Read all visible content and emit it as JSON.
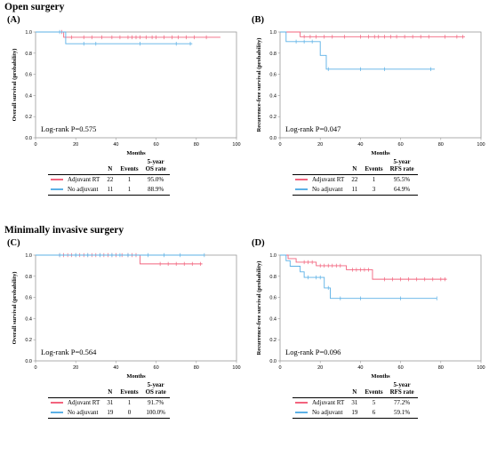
{
  "sections": [
    {
      "title": "Open surgery"
    },
    {
      "title": "Minimally invasive surgery"
    }
  ],
  "colors": {
    "adjuvant": "#f2647e",
    "no_adjuvant": "#5bb0e6",
    "frame": "#9a9a9a"
  },
  "table_headers": {
    "n": "N",
    "events": "Events",
    "rate_os_1": "5-year",
    "rate_os_2": "OS rate",
    "rate_rfs_1": "5-year",
    "rate_rfs_2": "RFS rate"
  },
  "chart_data": [
    {
      "type": "line",
      "label": "(A)",
      "xlabel": "Months",
      "ylabel": "Overall survival (probability)",
      "xlim": [
        0,
        100
      ],
      "ylim": [
        0,
        1
      ],
      "xticks": [
        "0",
        "20",
        "40",
        "60",
        "80",
        "100"
      ],
      "yticks": [
        "0.0",
        "0.2",
        "0.4",
        "0.6",
        "0.8",
        "1.0"
      ],
      "logrank": "Log-rank P=0.575",
      "series": [
        {
          "name": "Adjuvant RT",
          "n": "22",
          "events": "1",
          "rate": "95.0%",
          "x": [
            0,
            14,
            14,
            92
          ],
          "y": [
            1,
            1,
            0.95,
            0.95
          ],
          "censor_x": [
            13,
            18,
            24,
            28,
            33,
            38,
            42,
            46,
            48,
            50,
            52,
            55,
            58,
            60,
            64,
            68,
            71,
            75,
            79,
            85
          ]
        },
        {
          "name": "No adjuvant",
          "n": "11",
          "events": "1",
          "rate": "88.9%",
          "x": [
            0,
            15,
            15,
            78
          ],
          "y": [
            1,
            1,
            0.889,
            0.889
          ],
          "censor_x": [
            12,
            24,
            30,
            52,
            70,
            77
          ]
        }
      ]
    },
    {
      "type": "line",
      "label": "(B)",
      "xlabel": "Months",
      "ylabel": "Recurrence-free survival (probability)",
      "xlim": [
        0,
        100
      ],
      "ylim": [
        0,
        1
      ],
      "xticks": [
        "0",
        "20",
        "40",
        "60",
        "80",
        "100"
      ],
      "yticks": [
        "0.0",
        "0.2",
        "0.4",
        "0.6",
        "0.8",
        "1.0"
      ],
      "logrank": "Log-rank P=0.047",
      "series": [
        {
          "name": "Adjuvant RT",
          "n": "22",
          "events": "1",
          "rate": "95.5%",
          "x": [
            0,
            10,
            10,
            92
          ],
          "y": [
            1,
            1,
            0.955,
            0.955
          ],
          "censor_x": [
            12,
            15,
            18,
            22,
            26,
            32,
            40,
            44,
            47,
            49,
            52,
            55,
            58,
            62,
            66,
            70,
            74,
            82,
            88,
            91
          ]
        },
        {
          "name": "No adjuvant",
          "n": "11",
          "events": "3",
          "rate": "64.9%",
          "x": [
            0,
            3,
            3,
            20,
            20,
            23,
            23,
            77
          ],
          "y": [
            1,
            1,
            0.909,
            0.909,
            0.779,
            0.779,
            0.649,
            0.649
          ],
          "censor_x": [
            8,
            12,
            16,
            24,
            40,
            52,
            75
          ]
        }
      ]
    },
    {
      "type": "line",
      "label": "(C)",
      "xlabel": "Months",
      "ylabel": "Overall survival (probability)",
      "xlim": [
        0,
        100
      ],
      "ylim": [
        0,
        1
      ],
      "xticks": [
        "0",
        "20",
        "40",
        "60",
        "80",
        "100"
      ],
      "yticks": [
        "0.0",
        "0.2",
        "0.4",
        "0.6",
        "0.8",
        "1.0"
      ],
      "logrank": "Log-rank P=0.564",
      "series": [
        {
          "name": "Adjuvant RT",
          "n": "31",
          "events": "1",
          "rate": "91.7%",
          "x": [
            0,
            52,
            52,
            83
          ],
          "y": [
            1,
            1,
            0.917,
            0.917
          ],
          "censor_x": [
            12,
            14,
            16,
            18,
            20,
            22,
            24,
            26,
            28,
            30,
            32,
            34,
            36,
            38,
            40,
            43,
            46,
            48,
            50,
            62,
            66,
            70,
            74,
            78,
            82
          ]
        },
        {
          "name": "No adjuvant",
          "n": "19",
          "events": "0",
          "rate": "100.0%",
          "x": [
            0,
            84
          ],
          "y": [
            1,
            1
          ],
          "censor_x": [
            12,
            20,
            26,
            32,
            38,
            42,
            46,
            56,
            64,
            72,
            84
          ]
        }
      ]
    },
    {
      "type": "line",
      "label": "(D)",
      "xlabel": "Months",
      "ylabel": "Recurrence-free survival (probability)",
      "xlim": [
        0,
        100
      ],
      "ylim": [
        0,
        1
      ],
      "xticks": [
        "0",
        "20",
        "40",
        "60",
        "80",
        "100"
      ],
      "yticks": [
        "0.0",
        "0.2",
        "0.4",
        "0.6",
        "0.8",
        "1.0"
      ],
      "logrank": "Log-rank P=0.096",
      "series": [
        {
          "name": "Adjuvant RT",
          "n": "31",
          "events": "5",
          "rate": "77.2%",
          "x": [
            0,
            4,
            4,
            8,
            8,
            18,
            18,
            33,
            33,
            46,
            46,
            83
          ],
          "y": [
            1,
            1,
            0.967,
            0.967,
            0.933,
            0.933,
            0.9,
            0.9,
            0.862,
            0.862,
            0.772,
            0.772
          ],
          "censor_x": [
            12,
            14,
            16,
            20,
            22,
            24,
            26,
            28,
            30,
            36,
            38,
            40,
            42,
            44,
            52,
            56,
            60,
            64,
            68,
            72,
            76,
            80,
            82
          ]
        },
        {
          "name": "No adjuvant",
          "n": "19",
          "events": "6",
          "rate": "59.1%",
          "x": [
            0,
            3,
            3,
            5,
            5,
            10,
            10,
            12,
            12,
            22,
            22,
            25,
            25,
            78
          ],
          "y": [
            1,
            1,
            0.947,
            0.947,
            0.895,
            0.895,
            0.842,
            0.842,
            0.789,
            0.789,
            0.69,
            0.69,
            0.591,
            0.591
          ],
          "censor_x": [
            14,
            18,
            20,
            24,
            30,
            40,
            60,
            78
          ]
        }
      ]
    }
  ]
}
